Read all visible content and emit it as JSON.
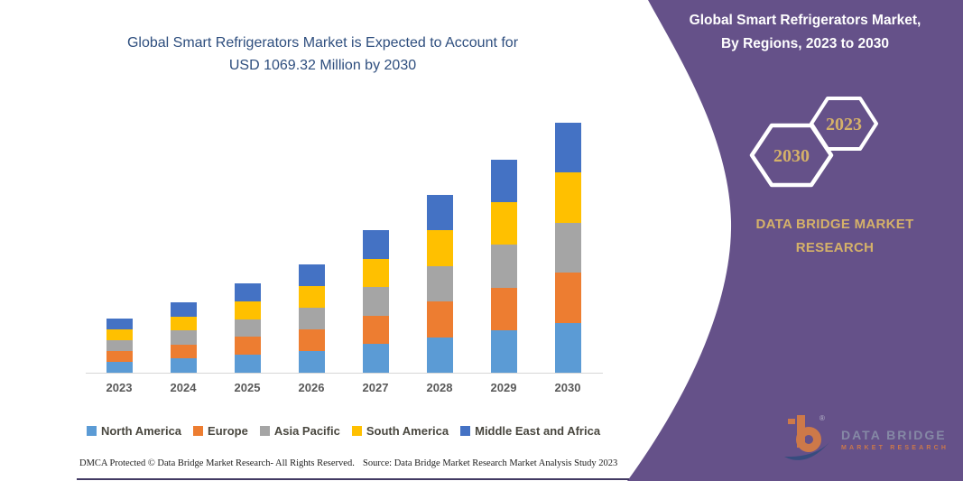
{
  "chart": {
    "title_line1": "Global Smart Refrigerators Market is Expected to Account for",
    "title_line2": "USD 1069.32 Million by 2030"
  },
  "chart_data": {
    "type": "bar",
    "stacked": true,
    "title": "Global Smart Refrigerators Market is Expected to Account for USD 1069.32 Million by 2030",
    "units": "USD Million",
    "categories": [
      "2023",
      "2024",
      "2025",
      "2026",
      "2027",
      "2028",
      "2029",
      "2030"
    ],
    "series": [
      {
        "name": "North America",
        "color": "#5B9BD5",
        "values": [
          46.3,
          60.2,
          76.4,
          92.7,
          122.0,
          152.1,
          182.2,
          213.9
        ]
      },
      {
        "name": "Europe",
        "color": "#ED7D31",
        "values": [
          46.3,
          60.2,
          76.4,
          92.7,
          122.0,
          152.1,
          182.2,
          213.9
        ]
      },
      {
        "name": "Asia Pacific",
        "color": "#A5A5A5",
        "values": [
          46.3,
          60.2,
          76.4,
          92.7,
          122.0,
          152.1,
          182.2,
          213.9
        ]
      },
      {
        "name": "South America",
        "color": "#FFC000",
        "values": [
          46.3,
          60.2,
          76.4,
          92.7,
          122.0,
          152.1,
          182.2,
          213.9
        ]
      },
      {
        "name": "Middle East and Africa",
        "color": "#4472C4",
        "values": [
          46.3,
          60.2,
          76.4,
          92.7,
          122.0,
          152.1,
          182.2,
          213.9
        ]
      }
    ],
    "totals_estimated": [
      231.5,
      301.0,
      382.0,
      463.5,
      610.0,
      760.5,
      911.0,
      1069.32
    ],
    "ylim": [
      0,
      1100
    ],
    "xlabel": "",
    "ylabel": "",
    "gridlines": false,
    "y_axis_visible": false,
    "legend_position": "bottom"
  },
  "panel": {
    "title_line1": "Global Smart Refrigerators Market,",
    "title_line2": "By Regions, 2023 to 2030",
    "badges": [
      {
        "year": "2030"
      },
      {
        "year": "2023"
      }
    ],
    "brand_text": "DATA BRIDGE MARKET RESEARCH",
    "colors": {
      "purple": "#655189",
      "gold": "#D5B169"
    }
  },
  "logo": {
    "line1": "DATA BRIDGE",
    "line2": "MARKET RESEARCH",
    "registered": "®"
  },
  "footer": {
    "left": "DMCA Protected © Data Bridge Market Research-  All Rights Reserved.",
    "right": "Source: Data Bridge Market Research  Market Analysis Study 2023"
  },
  "colors": {
    "title_blue": "#2E4E7E",
    "axis_label_gray": "#595959",
    "legend_text": "#49473F",
    "axis_line": "#D6D6D6",
    "bottom_rule": "#423A63"
  }
}
